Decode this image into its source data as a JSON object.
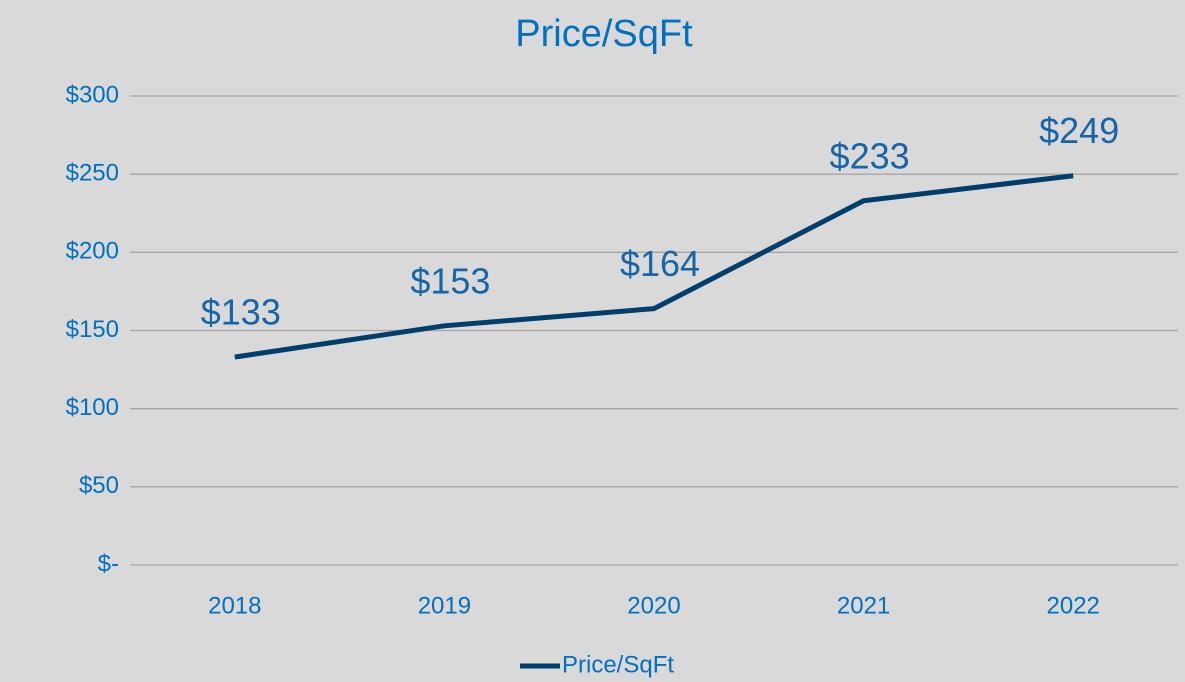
{
  "chart_data": {
    "type": "line",
    "title": "Price/SqFt",
    "categories": [
      "2018",
      "2019",
      "2020",
      "2021",
      "2022"
    ],
    "series": [
      {
        "name": "Price/SqFt",
        "color": "#003f6b",
        "values": [
          133,
          153,
          164,
          233,
          249
        ],
        "value_labels": [
          "$133",
          "$153",
          "$164",
          "$233",
          "$249"
        ]
      }
    ],
    "ylim": [
      0,
      300
    ],
    "yticks": [
      {
        "value": 0,
        "label": "$-"
      },
      {
        "value": 50,
        "label": "$50"
      },
      {
        "value": 100,
        "label": "$100"
      },
      {
        "value": 150,
        "label": "$150"
      },
      {
        "value": 200,
        "label": "$200"
      },
      {
        "value": 250,
        "label": "$250"
      },
      {
        "value": 300,
        "label": "$300"
      }
    ],
    "grid": true,
    "legend": "bottom"
  }
}
